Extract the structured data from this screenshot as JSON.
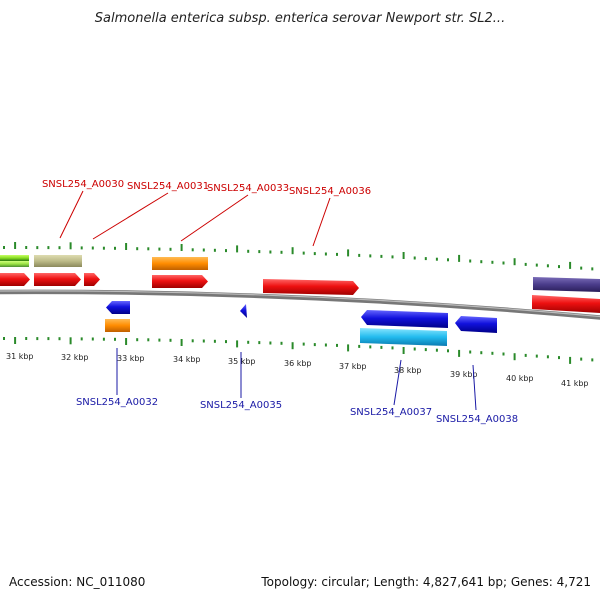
{
  "title": "Salmonella enterica subsp. enterica serovar Newport str. SL2...",
  "footer": {
    "accession": "Accession: NC_011080",
    "topology": "Topology: circular; Length: 4,827,641 bp; Genes: 4,721"
  },
  "axis": {
    "unit": "kbp",
    "tick_labels": [
      "31 kbp",
      "32 kbp",
      "33 kbp",
      "34 kbp",
      "35 kbp",
      "36 kbp",
      "37 kbp",
      "38 kbp",
      "39 kbp",
      "40 kbp",
      "41 kbp"
    ]
  },
  "labels_top": [
    "SNSL254_A0030",
    "SNSL254_A0031",
    "SNSL254_A0033",
    "SNSL254_A0036"
  ],
  "labels_bottom": [
    "SNSL254_A0032",
    "SNSL254_A0035",
    "SNSL254_A0037",
    "SNSL254_A0038"
  ],
  "colors": {
    "forward_gene": "#ee1111",
    "reverse_gene": "#1111dd",
    "lime": "#88dd22",
    "khaki": "#bdbb88",
    "orange": "#ff8c00",
    "cyan": "#22bbee",
    "purple": "#4a3c8a",
    "tick": "#2a8a2a",
    "backbone": "#888888"
  }
}
